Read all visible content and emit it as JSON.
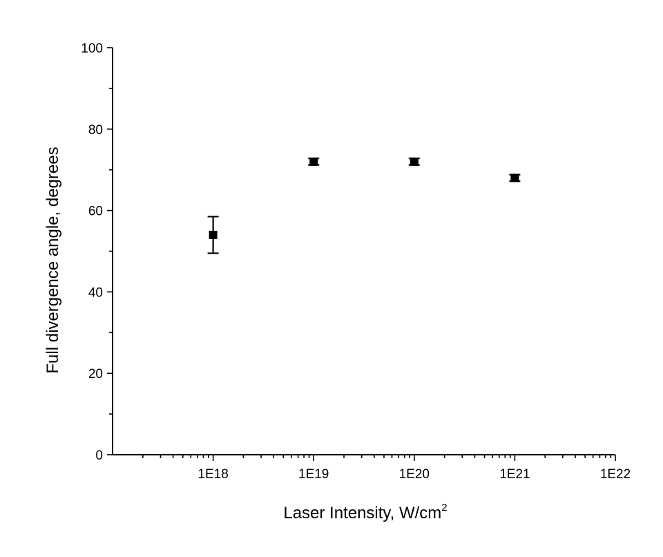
{
  "chart_data": {
    "type": "scatter",
    "xlabel": "Laser Intensity, W/cm",
    "xlabel_sup": "2",
    "ylabel": "Full divergence angle, degrees",
    "x_scale": "log",
    "xlim": [
      1e+17,
      1e+22
    ],
    "ylim": [
      0,
      100
    ],
    "x_ticks": [
      {
        "value": 1e+18,
        "label": "1E18"
      },
      {
        "value": 1e+19,
        "label": "1E19"
      },
      {
        "value": 1e+20,
        "label": "1E20"
      },
      {
        "value": 1e+21,
        "label": "1E21"
      },
      {
        "value": 1e+22,
        "label": "1E22"
      }
    ],
    "y_ticks": [
      {
        "value": 0,
        "label": "0"
      },
      {
        "value": 20,
        "label": "20"
      },
      {
        "value": 40,
        "label": "40"
      },
      {
        "value": 60,
        "label": "60"
      },
      {
        "value": 80,
        "label": "80"
      },
      {
        "value": 100,
        "label": "100"
      }
    ],
    "grid": false,
    "series": [
      {
        "marker": "square",
        "color": "#000000",
        "points": [
          {
            "x": 1e+18,
            "y": 54,
            "err": 4.5
          },
          {
            "x": 1e+19,
            "y": 72,
            "err": 0.8
          },
          {
            "x": 1e+20,
            "y": 72,
            "err": 0.8
          },
          {
            "x": 1e+21,
            "y": 68,
            "err": 0.8
          }
        ]
      }
    ]
  }
}
